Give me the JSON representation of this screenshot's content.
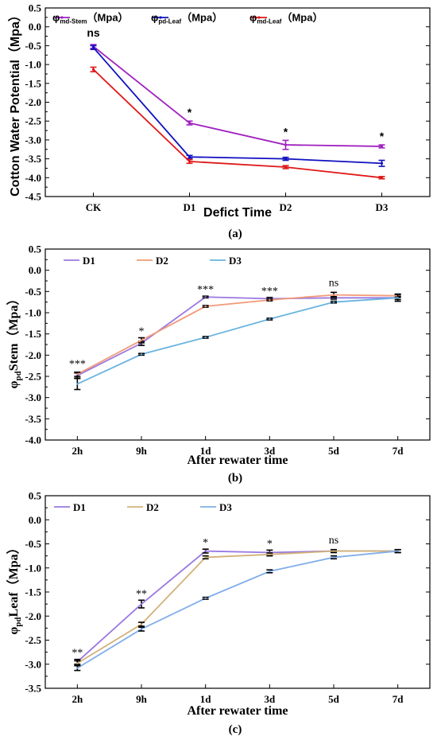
{
  "colors": {
    "purple": "#a020c0",
    "blue": "#1010c0",
    "red": "#e01818",
    "lavender": "#9a78e0",
    "salmon": "#f29a7a",
    "skyblue": "#6ab4e0",
    "tan": "#d2b27a",
    "lightblue": "#82aeea",
    "black": "#000000"
  },
  "chart_data": [
    {
      "type": "line",
      "caption": "(a)",
      "xlabel": "Defict Time",
      "ylabel": "Cotton Water Potential（Mpa）",
      "categories": [
        "CK",
        "D1",
        "D2",
        "D3"
      ],
      "ylim": [
        -4.5,
        0.5
      ],
      "yticks": [
        "0.5",
        "0.0",
        "-0.5",
        "-1.0",
        "-1.5",
        "-2.0",
        "-2.5",
        "-3.0",
        "-3.5",
        "-4.0",
        "-4.5"
      ],
      "legend_position": "top",
      "series": [
        {
          "name": "φmd-Stem（Mpa）",
          "name_main": "φ",
          "name_sub": "md-Stem",
          "name_unit": "（Mpa）",
          "color": "purple",
          "values": [
            -0.52,
            -2.55,
            -3.13,
            -3.17
          ],
          "errors": [
            0.05,
            0.05,
            0.12,
            0.04
          ]
        },
        {
          "name": "φpd-Leaf（Mpa）",
          "name_main": "φ",
          "name_sub": "pd-Leaf",
          "name_unit": "（Mpa）",
          "color": "blue",
          "values": [
            -0.55,
            -3.45,
            -3.5,
            -3.62
          ],
          "errors": [
            0.05,
            0.04,
            0.04,
            0.08
          ]
        },
        {
          "name": "φmd-Leaf（Mpa）",
          "name_main": "φ",
          "name_sub": "md-Leaf",
          "name_unit": "（Mpa）",
          "color": "red",
          "values": [
            -1.13,
            -3.57,
            -3.72,
            -4.0
          ],
          "errors": [
            0.06,
            0.05,
            0.04,
            0.03
          ]
        }
      ],
      "annotations": [
        "ns",
        "*",
        "*",
        "*"
      ]
    },
    {
      "type": "line",
      "caption": "(b)",
      "xlabel": "After rewater time",
      "ylabel": "φpdStem（Mpa）",
      "ylabel_main": "φ",
      "ylabel_sub": "pd",
      "ylabel_rest": "Stem（Mpa）",
      "categories": [
        "2h",
        "9h",
        "1d",
        "3d",
        "5d",
        "7d"
      ],
      "ylim": [
        -4.0,
        0.5
      ],
      "yticks": [
        "0.5",
        "0.0",
        "-0.5",
        "-1.0",
        "-1.5",
        "-2.0",
        "-2.5",
        "-3.0",
        "-3.5",
        "-4.0"
      ],
      "legend_position": "top-left",
      "series": [
        {
          "name": "D1",
          "color": "lavender",
          "values": [
            -2.48,
            -1.72,
            -0.63,
            -0.67,
            -0.65,
            -0.65
          ],
          "errors": [
            0.06,
            0.05,
            0.02,
            0.03,
            0.03,
            0.04
          ]
        },
        {
          "name": "D2",
          "color": "salmon",
          "values": [
            -2.45,
            -1.65,
            -0.85,
            -0.7,
            -0.58,
            -0.6
          ],
          "errors": [
            0.05,
            0.06,
            0.02,
            0.02,
            0.06,
            0.04
          ]
        },
        {
          "name": "D3",
          "color": "skyblue",
          "values": [
            -2.68,
            -1.98,
            -1.58,
            -1.15,
            -0.75,
            -0.65
          ],
          "errors": [
            0.13,
            0.02,
            0.02,
            0.02,
            0.02,
            0.08
          ]
        }
      ],
      "annotations": [
        "***",
        "*",
        "***",
        "***",
        "ns",
        ""
      ]
    },
    {
      "type": "line",
      "caption": "(c)",
      "xlabel": "After rewater time",
      "ylabel": "φpdLeaf（Mpa）",
      "ylabel_main": "φ",
      "ylabel_sub": "pd",
      "ylabel_rest": "Leaf（Mpa）",
      "categories": [
        "2h",
        "9h",
        "1d",
        "3d",
        "5d",
        "7d"
      ],
      "ylim": [
        -3.5,
        0.5
      ],
      "yticks": [
        "0.5",
        "0.0",
        "-0.5",
        "-1.0",
        "-1.5",
        "-2.0",
        "-2.5",
        "-3.0",
        "-3.5"
      ],
      "legend_position": "top-left",
      "series": [
        {
          "name": "D1",
          "color": "lavender",
          "values": [
            -2.95,
            -1.75,
            -0.65,
            -0.68,
            -0.65,
            -0.65
          ],
          "errors": [
            0.05,
            0.08,
            0.04,
            0.05,
            0.03,
            0.03
          ]
        },
        {
          "name": "D2",
          "color": "tan",
          "values": [
            -2.98,
            -2.17,
            -0.78,
            -0.72,
            -0.65,
            -0.65
          ],
          "errors": [
            0.05,
            0.04,
            0.03,
            0.03,
            0.03,
            0.03
          ]
        },
        {
          "name": "D3",
          "color": "lightblue",
          "values": [
            -3.08,
            -2.27,
            -1.63,
            -1.07,
            -0.78,
            -0.65
          ],
          "errors": [
            0.05,
            0.04,
            0.02,
            0.03,
            0.03,
            0.03
          ]
        }
      ],
      "annotations": [
        "**",
        "**",
        "*",
        "*",
        "ns",
        ""
      ]
    }
  ]
}
